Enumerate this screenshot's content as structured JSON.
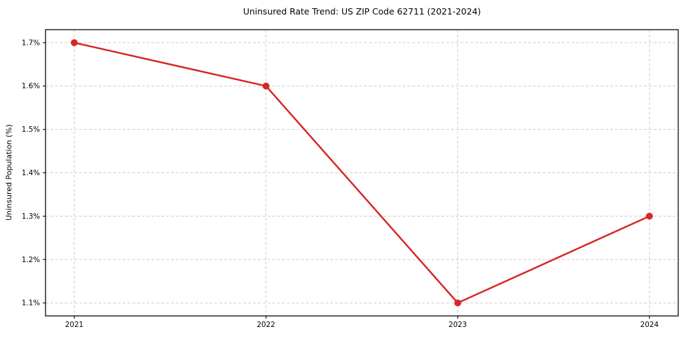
{
  "chart_data": {
    "type": "line",
    "title": "Uninsured Rate Trend: US ZIP Code 62711 (2021-2024)",
    "xlabel": "",
    "ylabel": "Uninsured Population (%)",
    "x": [
      2021,
      2022,
      2023,
      2024
    ],
    "x_tick_labels": [
      "2021",
      "2022",
      "2023",
      "2024"
    ],
    "series": [
      {
        "name": "uninsured-rate",
        "values": [
          1.7,
          1.6,
          1.1,
          1.3
        ],
        "color": "#d62728",
        "line_width": 2.5,
        "marker": "circle",
        "marker_radius": 5
      }
    ],
    "y_ticks": [
      1.1,
      1.2,
      1.3,
      1.4,
      1.5,
      1.6,
      1.7
    ],
    "y_tick_labels": [
      "1.1%",
      "1.2%",
      "1.3%",
      "1.4%",
      "1.5%",
      "1.6%",
      "1.7%"
    ],
    "xlim": [
      2020.85,
      2024.15
    ],
    "ylim": [
      1.07,
      1.73
    ],
    "grid": true,
    "grid_style": "dashed",
    "legend": "none"
  },
  "colors": {
    "background": "#ffffff",
    "grid": "#cccccc",
    "spine": "#1a1a1a",
    "tick": "#1a1a1a",
    "text": "#000000"
  }
}
